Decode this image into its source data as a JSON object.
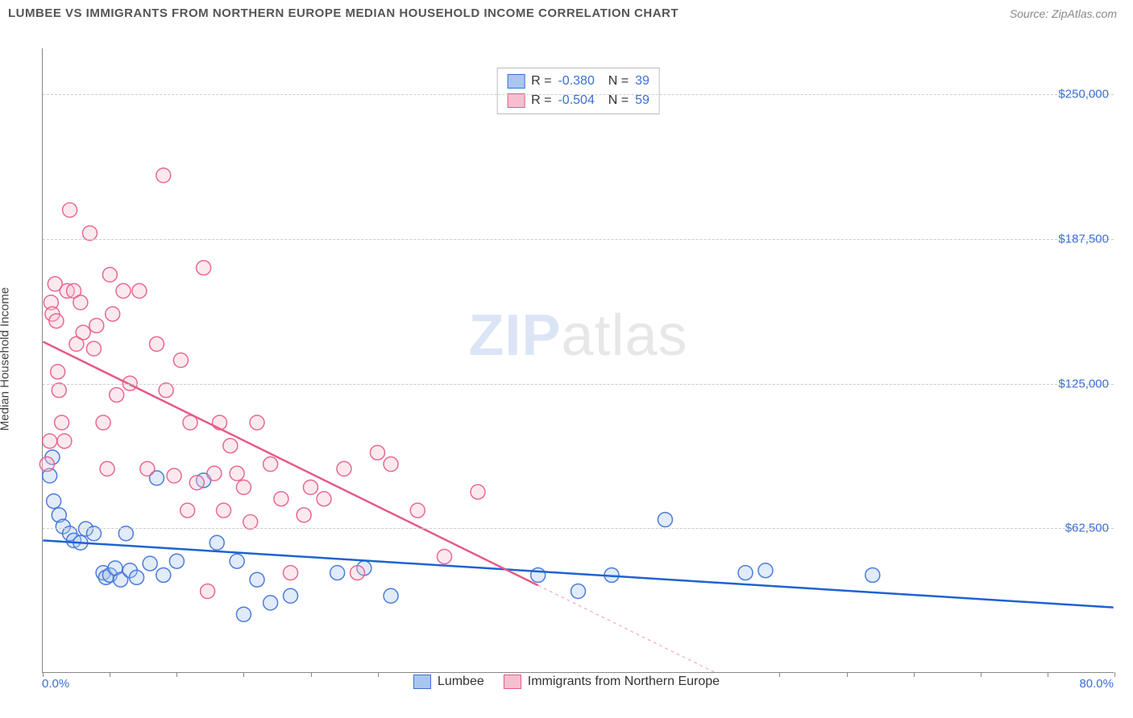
{
  "header": {
    "title": "LUMBEE VS IMMIGRANTS FROM NORTHERN EUROPE MEDIAN HOUSEHOLD INCOME CORRELATION CHART",
    "source": "Source: ZipAtlas.com"
  },
  "chart": {
    "type": "scatter",
    "background_color": "#ffffff",
    "grid_color": "#cccccc",
    "axis_color": "#888888",
    "ylabel": "Median Household Income",
    "label_fontsize": 15,
    "tick_color": "#3b6fd6",
    "xlim": [
      0,
      80
    ],
    "ylim": [
      0,
      270000
    ],
    "yticks": [
      {
        "v": 62500,
        "label": "$62,500"
      },
      {
        "v": 125000,
        "label": "$125,000"
      },
      {
        "v": 187500,
        "label": "$187,500"
      },
      {
        "v": 250000,
        "label": "$250,000"
      }
    ],
    "xtick_left": "0.0%",
    "xtick_right": "80.0%",
    "xtick_marks": [
      0,
      5,
      10,
      15,
      20,
      25,
      30,
      35,
      40,
      45,
      50,
      55,
      60,
      65,
      70,
      75,
      80
    ],
    "marker_radius": 9,
    "series": [
      {
        "name": "Lumbee",
        "fill": "#a9c6ee",
        "stroke": "#3b6fd6",
        "trend_color": "#1e63d0",
        "trend": {
          "x1": 0,
          "y1": 57000,
          "x2": 80,
          "y2": 28000,
          "dash_after_x": null
        },
        "points": [
          [
            0.5,
            85000
          ],
          [
            0.7,
            93000
          ],
          [
            0.8,
            74000
          ],
          [
            1.2,
            68000
          ],
          [
            1.5,
            63000
          ],
          [
            2.0,
            60000
          ],
          [
            2.3,
            57000
          ],
          [
            2.8,
            56000
          ],
          [
            3.2,
            62000
          ],
          [
            3.8,
            60000
          ],
          [
            4.5,
            43000
          ],
          [
            4.7,
            41000
          ],
          [
            5.0,
            42000
          ],
          [
            5.4,
            45000
          ],
          [
            5.8,
            40000
          ],
          [
            6.2,
            60000
          ],
          [
            6.5,
            44000
          ],
          [
            7.0,
            41000
          ],
          [
            8.0,
            47000
          ],
          [
            8.5,
            84000
          ],
          [
            9.0,
            42000
          ],
          [
            10.0,
            48000
          ],
          [
            12.0,
            83000
          ],
          [
            13.0,
            56000
          ],
          [
            14.5,
            48000
          ],
          [
            15.0,
            25000
          ],
          [
            16.0,
            40000
          ],
          [
            17.0,
            30000
          ],
          [
            18.5,
            33000
          ],
          [
            22.0,
            43000
          ],
          [
            24.0,
            45000
          ],
          [
            26.0,
            33000
          ],
          [
            37.0,
            42000
          ],
          [
            40.0,
            35000
          ],
          [
            42.5,
            42000
          ],
          [
            46.5,
            66000
          ],
          [
            52.5,
            43000
          ],
          [
            54.0,
            44000
          ],
          [
            62.0,
            42000
          ]
        ]
      },
      {
        "name": "Immigrants from Northern Europe",
        "fill": "#f6bfcf",
        "stroke": "#e65a87",
        "trend_color": "#e65a87",
        "trend": {
          "x1": 0,
          "y1": 143000,
          "x2": 80,
          "y2": -85000,
          "dash_after_x": 37
        },
        "points": [
          [
            0.3,
            90000
          ],
          [
            0.5,
            100000
          ],
          [
            0.6,
            160000
          ],
          [
            0.7,
            155000
          ],
          [
            0.9,
            168000
          ],
          [
            1.0,
            152000
          ],
          [
            1.1,
            130000
          ],
          [
            1.2,
            122000
          ],
          [
            1.4,
            108000
          ],
          [
            1.6,
            100000
          ],
          [
            1.8,
            165000
          ],
          [
            2.0,
            200000
          ],
          [
            2.3,
            165000
          ],
          [
            2.5,
            142000
          ],
          [
            2.8,
            160000
          ],
          [
            3.0,
            147000
          ],
          [
            3.5,
            190000
          ],
          [
            3.8,
            140000
          ],
          [
            4.0,
            150000
          ],
          [
            4.5,
            108000
          ],
          [
            4.8,
            88000
          ],
          [
            5.0,
            172000
          ],
          [
            5.2,
            155000
          ],
          [
            5.5,
            120000
          ],
          [
            6.0,
            165000
          ],
          [
            6.5,
            125000
          ],
          [
            7.2,
            165000
          ],
          [
            7.8,
            88000
          ],
          [
            8.5,
            142000
          ],
          [
            9.0,
            215000
          ],
          [
            9.2,
            122000
          ],
          [
            9.8,
            85000
          ],
          [
            10.3,
            135000
          ],
          [
            10.8,
            70000
          ],
          [
            11.0,
            108000
          ],
          [
            11.5,
            82000
          ],
          [
            12.0,
            175000
          ],
          [
            12.3,
            35000
          ],
          [
            12.8,
            86000
          ],
          [
            13.2,
            108000
          ],
          [
            13.5,
            70000
          ],
          [
            14.0,
            98000
          ],
          [
            14.5,
            86000
          ],
          [
            15.0,
            80000
          ],
          [
            15.5,
            65000
          ],
          [
            16.0,
            108000
          ],
          [
            17.0,
            90000
          ],
          [
            17.8,
            75000
          ],
          [
            18.5,
            43000
          ],
          [
            19.5,
            68000
          ],
          [
            20.0,
            80000
          ],
          [
            21.0,
            75000
          ],
          [
            22.5,
            88000
          ],
          [
            23.5,
            43000
          ],
          [
            25.0,
            95000
          ],
          [
            26.0,
            90000
          ],
          [
            28.0,
            70000
          ],
          [
            30.0,
            50000
          ],
          [
            32.5,
            78000
          ]
        ]
      }
    ],
    "stats": [
      {
        "series": 0,
        "r": "-0.380",
        "n": "39"
      },
      {
        "series": 1,
        "r": "-0.504",
        "n": "59"
      }
    ],
    "legend": [
      {
        "series": 0,
        "label": "Lumbee"
      },
      {
        "series": 1,
        "label": "Immigrants from Northern Europe"
      }
    ],
    "watermark": {
      "zip": "ZIP",
      "atlas": "atlas"
    }
  }
}
